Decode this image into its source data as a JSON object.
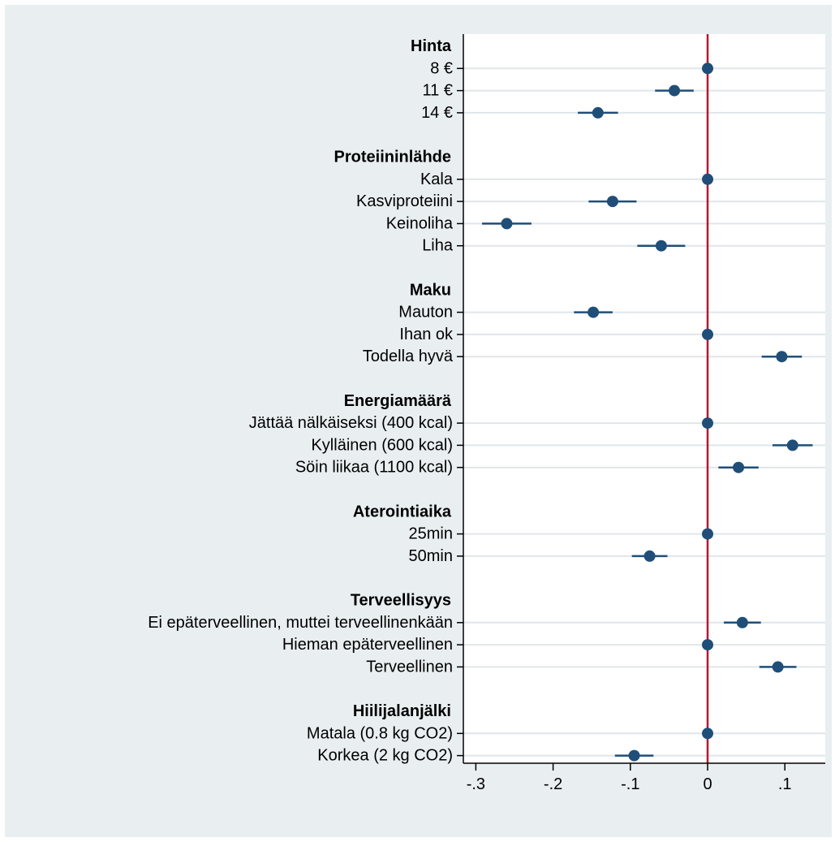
{
  "chart_data": {
    "type": "scatter",
    "style": "coefficient plot with horizontal confidence intervals",
    "title": "",
    "xlabel": "",
    "ylabel": "",
    "xlim": [
      -0.3,
      0.15
    ],
    "x_ticks": [
      -0.3,
      -0.2,
      -0.1,
      0,
      0.1
    ],
    "x_tick_labels": [
      "-.3",
      "-.2",
      "-.1",
      "0",
      ".1"
    ],
    "reference_line": {
      "x": 0,
      "color": "#b5172e"
    },
    "grid": true,
    "colors": {
      "marker": "#1f4e79",
      "ci": "#1f4e79",
      "background": "#e9eef1",
      "plot_background": "#ffffff",
      "grid": "#dfe6ea"
    },
    "groups": [
      {
        "name": "Hinta",
        "items": [
          {
            "label": "8 €",
            "estimate": 0.0,
            "ci": [
              0.0,
              0.0
            ]
          },
          {
            "label": "11 €",
            "estimate": -0.043,
            "ci": [
              -0.068,
              -0.018
            ]
          },
          {
            "label": "14 €",
            "estimate": -0.142,
            "ci": [
              -0.168,
              -0.116
            ]
          }
        ]
      },
      {
        "name": "Proteiininlähde",
        "items": [
          {
            "label": "Kala",
            "estimate": 0.0,
            "ci": [
              0.0,
              0.0
            ]
          },
          {
            "label": "Kasviproteiini",
            "estimate": -0.123,
            "ci": [
              -0.154,
              -0.092
            ]
          },
          {
            "label": "Keinoliha",
            "estimate": -0.26,
            "ci": [
              -0.292,
              -0.228
            ]
          },
          {
            "label": "Liha",
            "estimate": -0.06,
            "ci": [
              -0.091,
              -0.029
            ]
          }
        ]
      },
      {
        "name": "Maku",
        "items": [
          {
            "label": "Mauton",
            "estimate": -0.148,
            "ci": [
              -0.173,
              -0.123
            ]
          },
          {
            "label": "Ihan ok",
            "estimate": 0.0,
            "ci": [
              0.0,
              0.0
            ]
          },
          {
            "label": "Todella hyvä",
            "estimate": 0.096,
            "ci": [
              0.07,
              0.122
            ]
          }
        ]
      },
      {
        "name": "Energiamäärä",
        "items": [
          {
            "label": "Jättää nälkäiseksi (400 kcal)",
            "estimate": 0.0,
            "ci": [
              0.0,
              0.0
            ]
          },
          {
            "label": "Kylläinen (600 kcal)",
            "estimate": 0.11,
            "ci": [
              0.084,
              0.136
            ]
          },
          {
            "label": "Söin liikaa (1100 kcal)",
            "estimate": 0.04,
            "ci": [
              0.014,
              0.066
            ]
          }
        ]
      },
      {
        "name": "Aterointiaika",
        "items": [
          {
            "label": "25min",
            "estimate": 0.0,
            "ci": [
              0.0,
              0.0
            ]
          },
          {
            "label": "50min",
            "estimate": -0.075,
            "ci": [
              -0.098,
              -0.052
            ]
          }
        ]
      },
      {
        "name": "Terveellisyys",
        "items": [
          {
            "label": "Ei epäterveellinen, muttei terveellinenkään",
            "estimate": 0.045,
            "ci": [
              0.021,
              0.069
            ]
          },
          {
            "label": "Hieman epäterveellinen",
            "estimate": 0.0,
            "ci": [
              0.0,
              0.0
            ]
          },
          {
            "label": "Terveellinen",
            "estimate": 0.091,
            "ci": [
              0.067,
              0.115
            ]
          }
        ]
      },
      {
        "name": "Hiilijalanjälki",
        "items": [
          {
            "label": "Matala (0.8 kg CO2)",
            "estimate": 0.0,
            "ci": [
              0.0,
              0.0
            ]
          },
          {
            "label": "Korkea (2 kg CO2)",
            "estimate": -0.095,
            "ci": [
              -0.12,
              -0.07
            ]
          }
        ]
      }
    ]
  }
}
